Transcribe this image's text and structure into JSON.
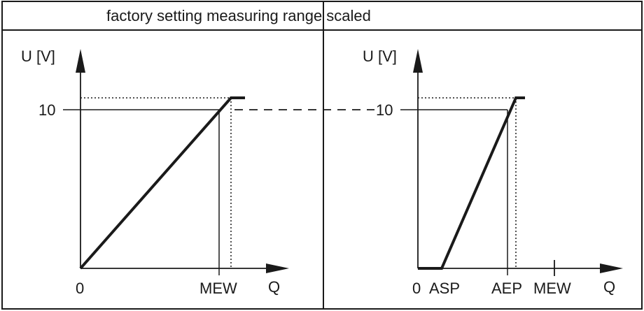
{
  "header": {
    "left_title": "factory setting measuring r",
    "right_title": "ange scaled"
  },
  "left_panel": {
    "y_axis_label": "U [V]",
    "y_tick_10": "10",
    "x_tick_0": "0",
    "x_tick_mew": "MEW",
    "x_axis_label": "Q"
  },
  "right_panel": {
    "y_axis_label": "U [V]",
    "y_tick_10": "10",
    "x_tick_0": "0",
    "x_tick_asp": "ASP",
    "x_tick_aep": "AEP",
    "x_tick_mew": "MEW",
    "x_axis_label": "Q"
  },
  "colors": {
    "line": "#1a1a1a",
    "background": "#ffffff"
  }
}
